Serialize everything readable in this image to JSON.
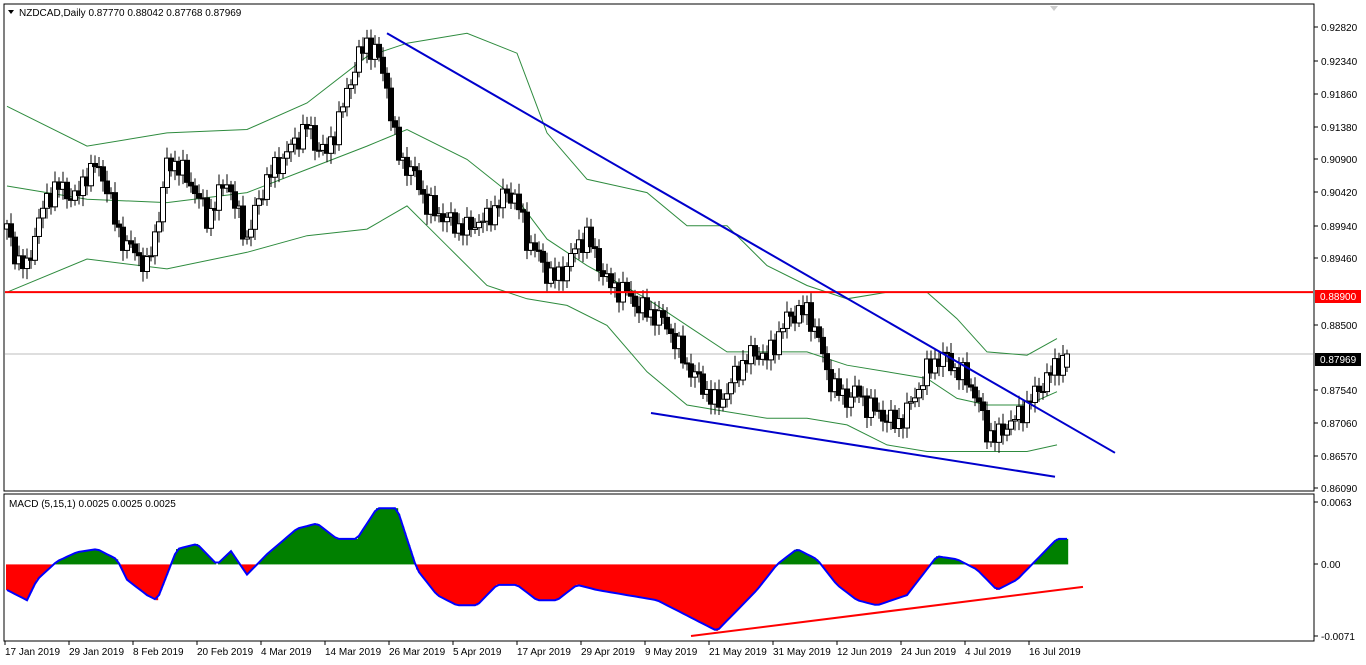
{
  "header": {
    "symbol_line": "NZDCAD,Daily  0.87770 0.88042 0.87768 0.87969"
  },
  "macd_header": "MACD (5,15,1) 0.0025 0.0025 0.0025",
  "price_axis": [
    "0.92820",
    "0.92340",
    "0.91860",
    "0.91380",
    "0.90900",
    "0.90420",
    "0.89940",
    "0.89460",
    "0.88500",
    "0.87540",
    "0.87060",
    "0.86570",
    "0.86090"
  ],
  "price_badges": {
    "resistance": "0.88900",
    "current": "0.87969"
  },
  "macd_axis": [
    "0.0063",
    "0.00",
    "-0.0071"
  ],
  "date_axis": [
    "17 Jan 2019",
    "29 Jan 2019",
    "8 Feb 2019",
    "20 Feb 2019",
    "4 Mar 2019",
    "14 Mar 2019",
    "26 Mar 2019",
    "5 Apr 2019",
    "17 Apr 2019",
    "29 Apr 2019",
    "9 May 2019",
    "21 May 2019",
    "31 May 2019",
    "12 Jun 2019",
    "24 Jun 2019",
    "4 Jul 2019",
    "16 Jul 2019"
  ],
  "colors": {
    "bull_candle": "#ffffff",
    "bear_candle": "#000000",
    "bollinger": "#2e8b3e",
    "trendline": "#0000cc",
    "resistance": "#ff0000",
    "macd_positive": "#008000",
    "macd_negative": "#ff0000",
    "macd_line": "#0000ff"
  },
  "chart_data": {
    "type": "candlestick",
    "symbol": "NZDCAD",
    "timeframe": "Daily",
    "last_bar": {
      "open": 0.8777,
      "high": 0.88042,
      "low": 0.87768,
      "close": 0.87969
    },
    "resistance_level": 0.889,
    "y_range": [
      0.8595,
      0.93
    ],
    "close_path": [
      [
        0,
        0.8985
      ],
      [
        5,
        0.894
      ],
      [
        10,
        0.8925
      ],
      [
        15,
        0.899
      ],
      [
        20,
        0.903
      ],
      [
        25,
        0.905
      ],
      [
        30,
        0.904
      ],
      [
        35,
        0.903
      ],
      [
        40,
        0.907
      ],
      [
        45,
        0.908
      ],
      [
        50,
        0.905
      ],
      [
        55,
        0.8985
      ],
      [
        60,
        0.896
      ],
      [
        65,
        0.895
      ],
      [
        70,
        0.8925
      ],
      [
        75,
        0.899
      ],
      [
        80,
        0.908
      ],
      [
        85,
        0.9085
      ],
      [
        90,
        0.906
      ],
      [
        95,
        0.904
      ],
      [
        100,
        0.9
      ],
      [
        105,
        0.903
      ],
      [
        110,
        0.906
      ],
      [
        115,
        0.901
      ],
      [
        120,
        0.897
      ],
      [
        125,
        0.902
      ],
      [
        130,
        0.906
      ],
      [
        135,
        0.908
      ],
      [
        140,
        0.91
      ],
      [
        145,
        0.912
      ],
      [
        150,
        0.914
      ],
      [
        155,
        0.911
      ],
      [
        160,
        0.91
      ],
      [
        165,
        0.914
      ],
      [
        170,
        0.919
      ],
      [
        175,
        0.924
      ],
      [
        180,
        0.9265
      ],
      [
        185,
        0.925
      ],
      [
        190,
        0.92
      ],
      [
        195,
        0.91
      ],
      [
        200,
        0.908
      ],
      [
        205,
        0.906
      ],
      [
        210,
        0.902
      ],
      [
        215,
        0.901
      ],
      [
        220,
        0.9
      ],
      [
        225,
        0.899
      ],
      [
        230,
        0.8985
      ],
      [
        235,
        0.8995
      ],
      [
        240,
        0.9
      ],
      [
        245,
        0.902
      ],
      [
        250,
        0.904
      ],
      [
        255,
        0.903
      ],
      [
        260,
        0.897
      ],
      [
        265,
        0.895
      ],
      [
        270,
        0.892
      ],
      [
        275,
        0.891
      ],
      [
        280,
        0.893
      ],
      [
        285,
        0.896
      ],
      [
        290,
        0.8975
      ],
      [
        295,
        0.894
      ],
      [
        300,
        0.8905
      ],
      [
        305,
        0.8895
      ],
      [
        310,
        0.889
      ],
      [
        315,
        0.887
      ],
      [
        320,
        0.886
      ],
      [
        325,
        0.8855
      ],
      [
        330,
        0.884
      ],
      [
        335,
        0.881
      ],
      [
        340,
        0.878
      ],
      [
        345,
        0.876
      ],
      [
        350,
        0.874
      ],
      [
        355,
        0.872
      ],
      [
        360,
        0.874
      ],
      [
        365,
        0.877
      ],
      [
        370,
        0.879
      ],
      [
        375,
        0.88
      ],
      [
        380,
        0.879
      ],
      [
        385,
        0.882
      ],
      [
        390,
        0.885
      ],
      [
        395,
        0.886
      ],
      [
        400,
        0.886
      ],
      [
        405,
        0.883
      ],
      [
        410,
        0.877
      ],
      [
        415,
        0.874
      ],
      [
        420,
        0.873
      ],
      [
        425,
        0.874
      ],
      [
        430,
        0.872
      ],
      [
        435,
        0.871
      ],
      [
        440,
        0.87
      ],
      [
        445,
        0.869
      ],
      [
        450,
        0.871
      ],
      [
        455,
        0.874
      ],
      [
        460,
        0.877
      ],
      [
        465,
        0.879
      ],
      [
        470,
        0.879
      ],
      [
        475,
        0.877
      ],
      [
        480,
        0.876
      ],
      [
        485,
        0.873
      ],
      [
        490,
        0.868
      ],
      [
        495,
        0.867
      ],
      [
        500,
        0.869
      ],
      [
        505,
        0.87
      ],
      [
        510,
        0.872
      ],
      [
        515,
        0.874
      ],
      [
        520,
        0.876
      ],
      [
        525,
        0.878
      ],
      [
        530,
        0.8797
      ]
    ],
    "bollinger_upper": [
      [
        0,
        0.917
      ],
      [
        40,
        0.911
      ],
      [
        80,
        0.913
      ],
      [
        120,
        0.9135
      ],
      [
        150,
        0.9175
      ],
      [
        180,
        0.9245
      ],
      [
        200,
        0.9265
      ],
      [
        230,
        0.928
      ],
      [
        255,
        0.925
      ],
      [
        270,
        0.913
      ],
      [
        290,
        0.906
      ],
      [
        320,
        0.904
      ],
      [
        340,
        0.899
      ],
      [
        360,
        0.899
      ],
      [
        380,
        0.893
      ],
      [
        400,
        0.89
      ],
      [
        420,
        0.888
      ],
      [
        440,
        0.889
      ],
      [
        460,
        0.889
      ],
      [
        475,
        0.885
      ],
      [
        490,
        0.88
      ],
      [
        510,
        0.8795
      ],
      [
        525,
        0.882
      ]
    ],
    "bollinger_middle": [
      [
        0,
        0.905
      ],
      [
        40,
        0.903
      ],
      [
        80,
        0.9025
      ],
      [
        120,
        0.904
      ],
      [
        150,
        0.9075
      ],
      [
        180,
        0.911
      ],
      [
        200,
        0.9135
      ],
      [
        230,
        0.909
      ],
      [
        255,
        0.903
      ],
      [
        270,
        0.897
      ],
      [
        290,
        0.893
      ],
      [
        320,
        0.888
      ],
      [
        340,
        0.884
      ],
      [
        360,
        0.88
      ],
      [
        380,
        0.88
      ],
      [
        400,
        0.88
      ],
      [
        420,
        0.878
      ],
      [
        440,
        0.877
      ],
      [
        460,
        0.876
      ],
      [
        475,
        0.873
      ],
      [
        490,
        0.872
      ],
      [
        510,
        0.872
      ],
      [
        525,
        0.874
      ]
    ],
    "bollinger_lower": [
      [
        0,
        0.889
      ],
      [
        40,
        0.894
      ],
      [
        80,
        0.8925
      ],
      [
        120,
        0.895
      ],
      [
        150,
        0.8975
      ],
      [
        180,
        0.8985
      ],
      [
        200,
        0.902
      ],
      [
        220,
        0.896
      ],
      [
        240,
        0.89
      ],
      [
        260,
        0.888
      ],
      [
        280,
        0.887
      ],
      [
        300,
        0.884
      ],
      [
        320,
        0.877
      ],
      [
        340,
        0.872
      ],
      [
        360,
        0.871
      ],
      [
        380,
        0.87
      ],
      [
        400,
        0.87
      ],
      [
        420,
        0.869
      ],
      [
        440,
        0.866
      ],
      [
        460,
        0.865
      ],
      [
        475,
        0.865
      ],
      [
        490,
        0.865
      ],
      [
        510,
        0.865
      ],
      [
        525,
        0.866
      ]
    ],
    "trendlines": [
      {
        "from": [
          190,
          0.928
        ],
        "to": [
          554,
          0.8648
        ]
      },
      {
        "from": [
          322,
          0.8708
        ],
        "to": [
          524,
          0.8612
        ]
      }
    ],
    "macd": {
      "y_range": [
        -0.0071,
        0.0063
      ],
      "histogram": [
        [
          0,
          -0.0025
        ],
        [
          10,
          -0.0035
        ],
        [
          15,
          -0.0015
        ],
        [
          25,
          0.0003
        ],
        [
          35,
          0.0012
        ],
        [
          45,
          0.0015
        ],
        [
          55,
          0.0005
        ],
        [
          60,
          -0.0015
        ],
        [
          70,
          -0.003
        ],
        [
          75,
          -0.0035
        ],
        [
          85,
          0.0015
        ],
        [
          95,
          0.002
        ],
        [
          105,
          0.0
        ],
        [
          112,
          0.0013
        ],
        [
          120,
          -0.001
        ],
        [
          130,
          0.001
        ],
        [
          145,
          0.0035
        ],
        [
          155,
          0.004
        ],
        [
          165,
          0.0025
        ],
        [
          175,
          0.0025
        ],
        [
          185,
          0.0055
        ],
        [
          195,
          0.0055
        ],
        [
          205,
          -0.0005
        ],
        [
          215,
          -0.003
        ],
        [
          225,
          -0.004
        ],
        [
          235,
          -0.004
        ],
        [
          245,
          -0.002
        ],
        [
          255,
          -0.002
        ],
        [
          265,
          -0.0035
        ],
        [
          275,
          -0.0035
        ],
        [
          285,
          -0.002
        ],
        [
          295,
          -0.0025
        ],
        [
          310,
          -0.003
        ],
        [
          325,
          -0.0035
        ],
        [
          340,
          -0.005
        ],
        [
          355,
          -0.0065
        ],
        [
          365,
          -0.0045
        ],
        [
          375,
          -0.0025
        ],
        [
          385,
          0.0
        ],
        [
          395,
          0.0015
        ],
        [
          405,
          0.0005
        ],
        [
          415,
          -0.002
        ],
        [
          425,
          -0.0035
        ],
        [
          435,
          -0.004
        ],
        [
          450,
          -0.003
        ],
        [
          465,
          0.0008
        ],
        [
          475,
          0.0005
        ],
        [
          485,
          -0.0005
        ],
        [
          495,
          -0.0025
        ],
        [
          505,
          -0.0015
        ],
        [
          515,
          0.0005
        ],
        [
          525,
          0.0025
        ]
      ],
      "trendline": {
        "from": [
          342,
          -0.007
        ],
        "to": [
          538,
          -0.0022
        ]
      }
    }
  }
}
